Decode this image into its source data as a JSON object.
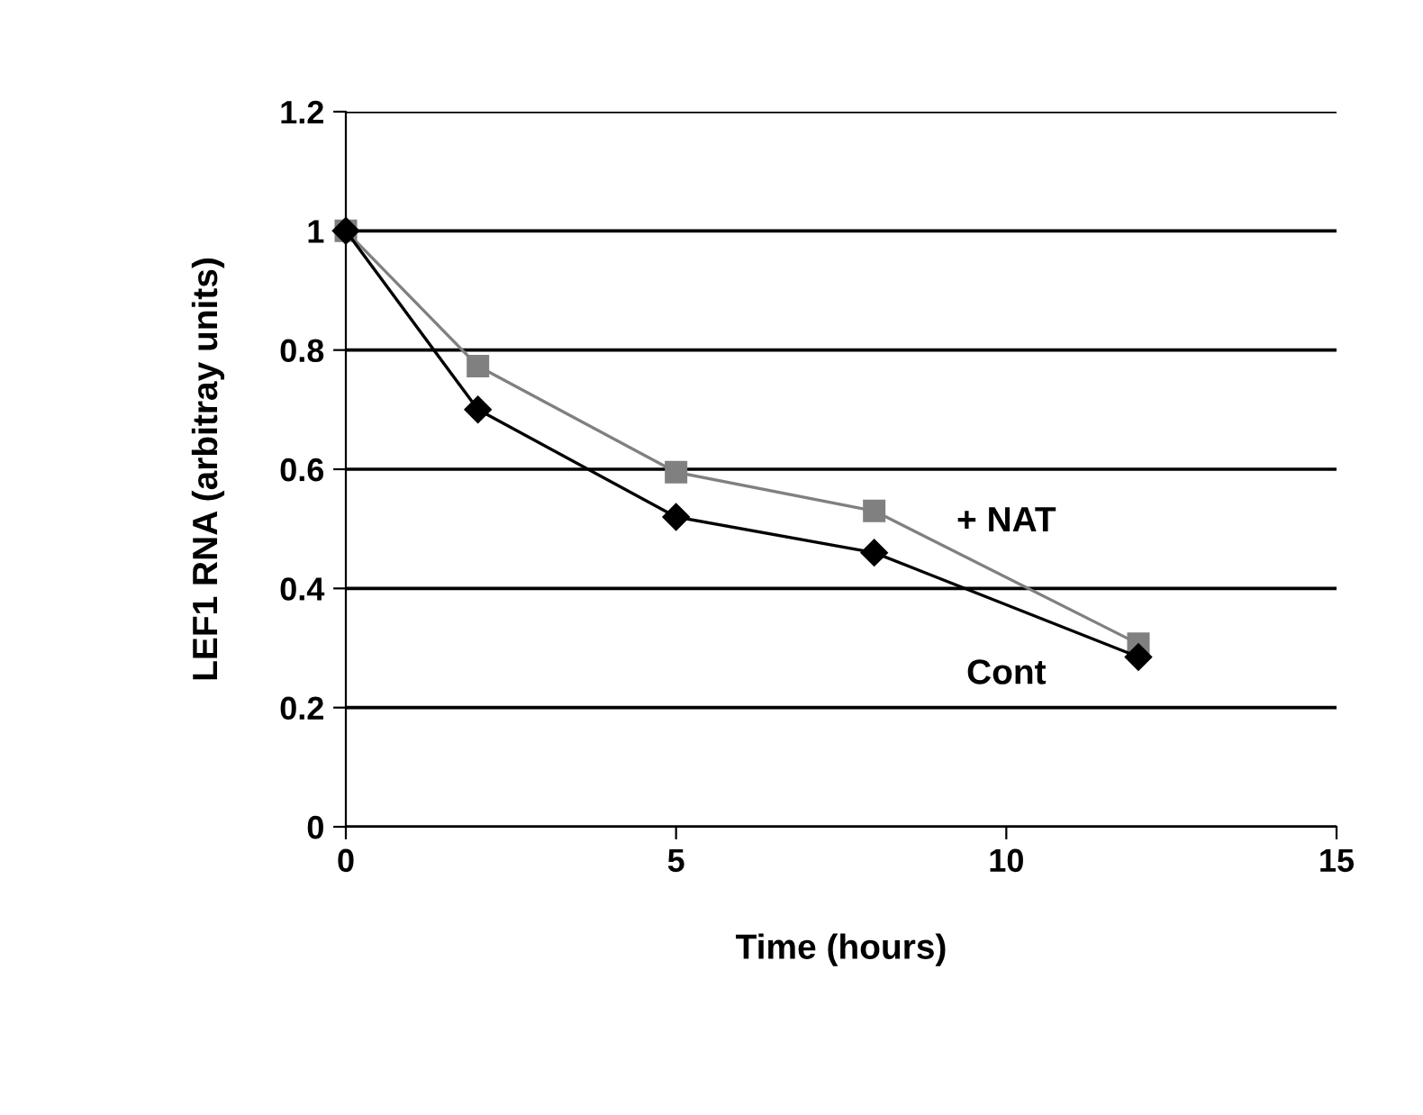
{
  "chart_data": {
    "type": "line",
    "xlabel": "Time (hours)",
    "ylabel": "LEF1 RNA (arbitray units)",
    "xlim": [
      0,
      15
    ],
    "xticks": [
      0,
      5,
      10,
      15
    ],
    "ylim": [
      0,
      1.2
    ],
    "yticks": [
      0,
      0.2,
      0.4,
      0.6,
      0.8,
      1,
      1.2
    ],
    "grid": "y",
    "series": [
      {
        "name": "Cont",
        "color": "#000000",
        "marker": "diamond",
        "x": [
          0,
          2,
          5,
          8,
          12
        ],
        "values": [
          1,
          0.7,
          0.52,
          0.46,
          0.285
        ]
      },
      {
        "name": "+ NAT",
        "color": "#808080",
        "marker": "square",
        "x": [
          0,
          2,
          5,
          8,
          12
        ],
        "values": [
          1,
          0.773,
          0.595,
          0.53,
          0.307
        ]
      }
    ]
  }
}
